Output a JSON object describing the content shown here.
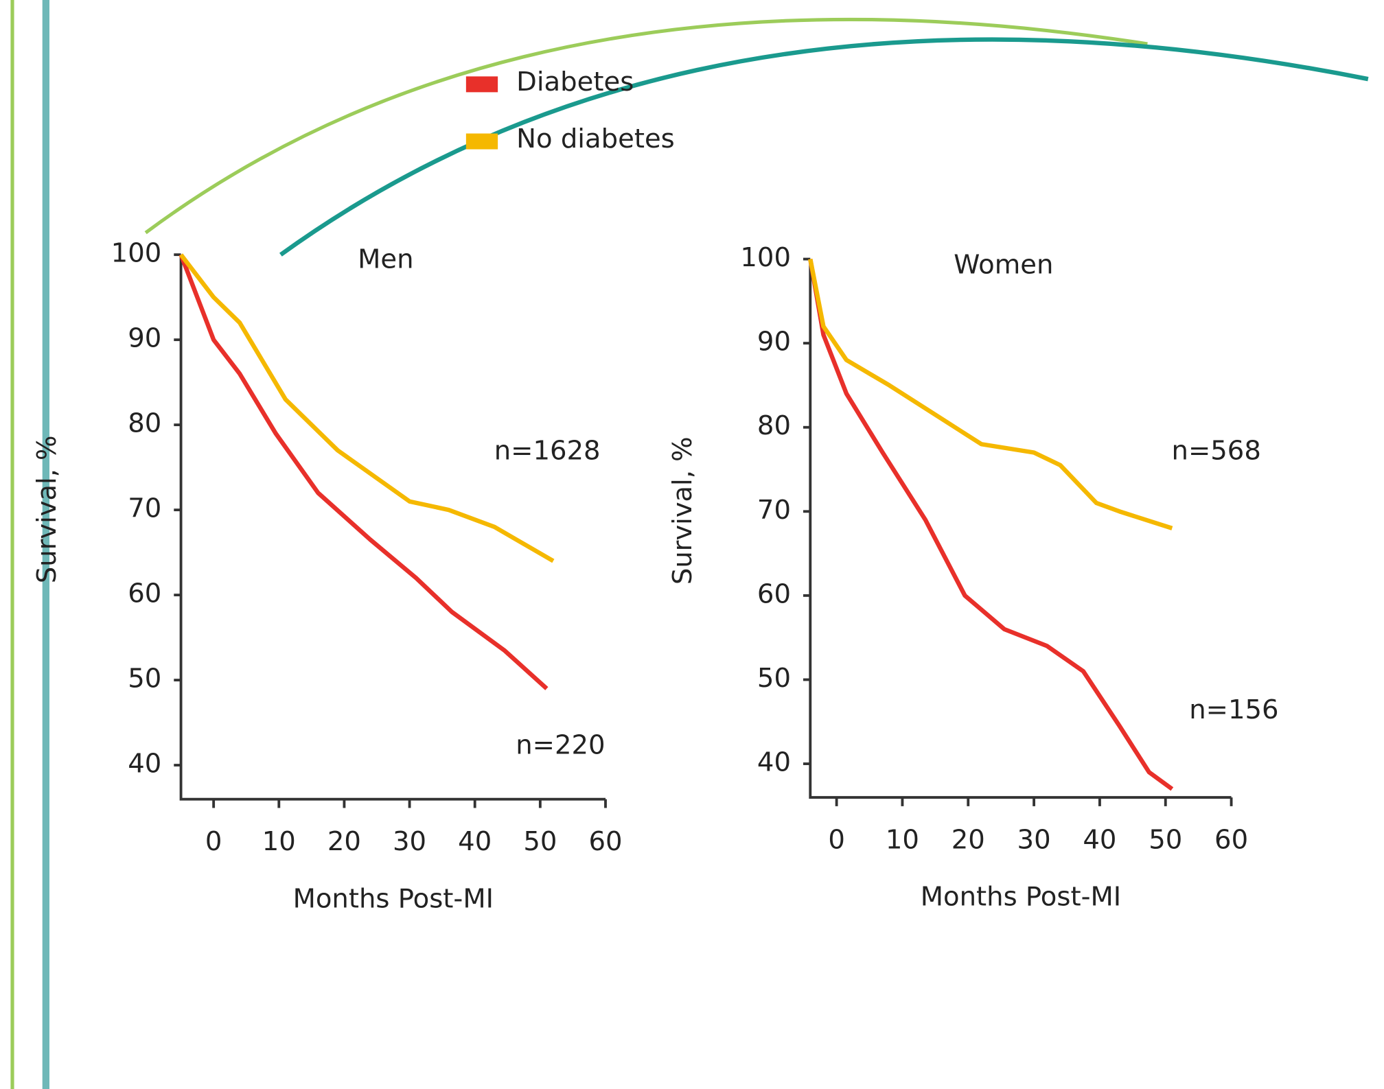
{
  "chart_data": [
    {
      "type": "line",
      "title": "Men",
      "x_label": "Months Post-MI",
      "y_label": "Survival, %",
      "xlim": [
        -5,
        60
      ],
      "xticks": [
        0,
        10,
        20,
        30,
        40,
        50,
        60
      ],
      "ylim": [
        36,
        100
      ],
      "yticks": [
        40,
        50,
        60,
        70,
        80,
        90,
        100
      ],
      "annotations": [
        "n=1628",
        "n=220"
      ],
      "series": [
        {
          "name": "Diabetes",
          "color": "#e8302a",
          "x": [
            -5,
            0,
            4,
            9.5,
            16,
            24,
            31,
            36.5,
            44.5,
            51
          ],
          "values": [
            100,
            90,
            86,
            79,
            72,
            66.5,
            62,
            58,
            53.5,
            49
          ]
        },
        {
          "name": "No diabetes",
          "color": "#f5b800",
          "x": [
            -5,
            0,
            4,
            11,
            19,
            30,
            36,
            43,
            52
          ],
          "values": [
            100,
            95,
            92,
            83,
            77,
            71,
            70,
            68,
            64
          ]
        }
      ]
    },
    {
      "type": "line",
      "title": "Women",
      "x_label": "Months Post-MI",
      "y_label": "Survival, %",
      "xlim": [
        -4,
        60
      ],
      "xticks": [
        0,
        10,
        20,
        30,
        40,
        50,
        60
      ],
      "ylim": [
        36,
        100
      ],
      "yticks": [
        40,
        50,
        60,
        70,
        80,
        90,
        100
      ],
      "annotations": [
        "n=568",
        "n=156"
      ],
      "series": [
        {
          "color": "#e8302a",
          "x": [
            -4,
            -2,
            1.5,
            7,
            13.5,
            19.5,
            25.5,
            32,
            37.5,
            43,
            47.5,
            51
          ],
          "values": [
            100,
            91,
            84,
            77,
            69,
            60,
            56,
            54,
            51,
            44.5,
            39,
            37
          ]
        },
        {
          "color": "#f5b800",
          "x": [
            -4,
            -2,
            1.5,
            8,
            16,
            22,
            30,
            34,
            39.5,
            43,
            51
          ],
          "values": [
            100,
            92,
            88,
            85,
            81,
            78,
            77,
            75.5,
            71,
            70,
            68
          ]
        }
      ]
    }
  ]
}
